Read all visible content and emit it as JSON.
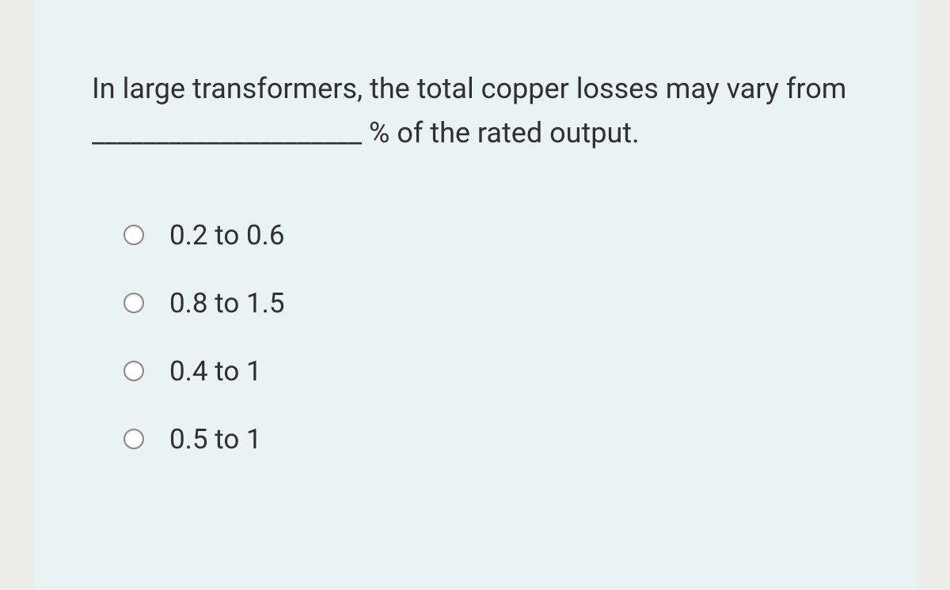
{
  "question": {
    "text": "In  large transformers, the total copper losses may vary from _____________________ % of the rated output.",
    "options": [
      {
        "label": "0.2 to 0.6"
      },
      {
        "label": "0.8 to 1.5"
      },
      {
        "label": "0.4 to 1"
      },
      {
        "label": "0.5 to 1"
      }
    ]
  },
  "colors": {
    "page_background": "#edeee9",
    "card_background": "#eaf3f3",
    "text_color": "#303030",
    "radio_border": "#8a8a8a"
  }
}
